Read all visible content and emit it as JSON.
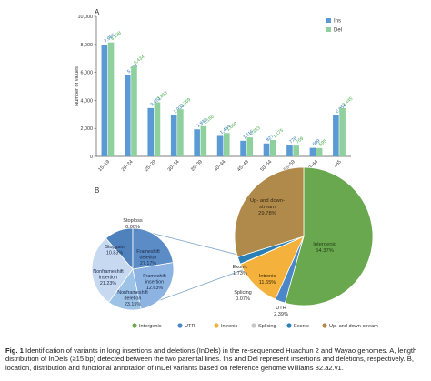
{
  "panels": {
    "a_label": "A",
    "b_label": "B"
  },
  "chart_data": [
    {
      "type": "bar",
      "ylabel": "Number of values",
      "ylim": [
        0,
        10000
      ],
      "yticks": [
        "0",
        "2,000",
        "4,000",
        "6,000",
        "8,000",
        "10,000"
      ],
      "categories": [
        "15–19",
        "20–24",
        "25–29",
        "30–34",
        "35–39",
        "40–44",
        "45–49",
        "50–54",
        "55–59",
        "60–64",
        "≥65"
      ],
      "series": [
        {
          "name": "Ins",
          "color": "#5b9bd5",
          "label_color": "#2e75b6",
          "values": [
            7986,
            5799,
            3451,
            2933,
            1932,
            1464,
            1116,
            927,
            778,
            609,
            2954
          ],
          "labels": [
            "7,986",
            "5,799",
            "3,451",
            "2,933",
            "1,932",
            "1,464",
            "1,116",
            "927",
            "778",
            "609",
            "2,954"
          ]
        },
        {
          "name": "Del",
          "color": "#8fd19e",
          "label_color": "#4caf50",
          "values": [
            8138,
            6434,
            3868,
            3369,
            2156,
            1669,
            1353,
            1175,
            769,
            595,
            3445
          ],
          "labels": [
            "8,138",
            "6,434",
            "3,868",
            "3,369",
            "2,156",
            "1,669",
            "1,353",
            "1,175",
            "769",
            "595",
            "3,445"
          ]
        }
      ],
      "legend": "top-right"
    },
    {
      "type": "pie",
      "name": "location",
      "slices": [
        {
          "label": "Intergenic",
          "value": 54.37,
          "text": "54.37%",
          "color": "#6aa84f"
        },
        {
          "label": "UTR",
          "value": 2.39,
          "text": "2.39%",
          "color": "#4a86c8"
        },
        {
          "label": "Intronic",
          "value": 11.65,
          "text": "11.65%",
          "color": "#f4b23c"
        },
        {
          "label": "Splicing",
          "value": 0.07,
          "text": "0.07%",
          "color": "#c7c7c7"
        },
        {
          "label": "Exonic",
          "value": 1.73,
          "text": "1.73%",
          "color": "#2a7fb4"
        },
        {
          "label": "Up- and down-stream",
          "value": 29.78,
          "text": "29.78%",
          "color": "#b08a4b"
        }
      ]
    },
    {
      "type": "pie",
      "name": "exonic-function",
      "slices": [
        {
          "label": "Stopgain",
          "value": 10.83,
          "text": "10.83%",
          "color": "#4f81bd"
        },
        {
          "label": "Frameshift deletion",
          "value": 27.17,
          "text": "27.17%",
          "color": "#c6d9f1"
        },
        {
          "label": "Frameshift insertion",
          "value": 12.63,
          "text": "12.63%",
          "color": "#9dc3e6"
        },
        {
          "label": "Nonframeshift deletion",
          "value": 23.15,
          "text": "23.15%",
          "color": "#8db3e2"
        },
        {
          "label": "Nonframeshift insertion",
          "value": 21.23,
          "text": "21.23%",
          "color": "#5b8cc6"
        },
        {
          "label": "Stoploss",
          "value": 0.0,
          "text": "0.00%",
          "color": "#ffffff"
        }
      ]
    }
  ],
  "pie_labels": {
    "intergenic": [
      "Intergenic",
      "54.37%"
    ],
    "updown": [
      "Up- and down-",
      "stream",
      "29.78%"
    ],
    "intronic": [
      "Intronic",
      "11.65%"
    ],
    "exonic": [
      "Exonic",
      "1.73%"
    ],
    "splicing": [
      "Splicing",
      "0.07%"
    ],
    "utr": [
      "UTR",
      "2.39%"
    ],
    "stopgain": [
      "Stopgain",
      "10.83%"
    ],
    "fs_del": [
      "Frameshift",
      "deletion",
      "27.17%"
    ],
    "fs_ins": [
      "Frameshift",
      "insertion",
      "12.63%"
    ],
    "nfs_del": [
      "Nonframeshift",
      "deletion",
      "23.15%"
    ],
    "nfs_ins": [
      "Nonframeshift",
      "insertion",
      "21.23%"
    ],
    "stoploss": [
      "Stoploss",
      "0.00%"
    ]
  },
  "pie_legend": [
    "Intergenic",
    "UTR",
    "Intronic",
    "Splicing",
    "Exonic",
    "Up- and down-stream"
  ],
  "caption": {
    "lead": "Fig. 1",
    "text": " Identification of variants in long insertions and deletions (InDels) in the re-sequenced Huachun 2 and Wayao genomes. A, length distribution of InDels (≥15 bp) detected between the two parental lines. Ins and Del represent insertions and deletions, respectively. B, location, distribution and functional annotation of InDel variants based on reference genome Williams 82.a2.v1."
  }
}
